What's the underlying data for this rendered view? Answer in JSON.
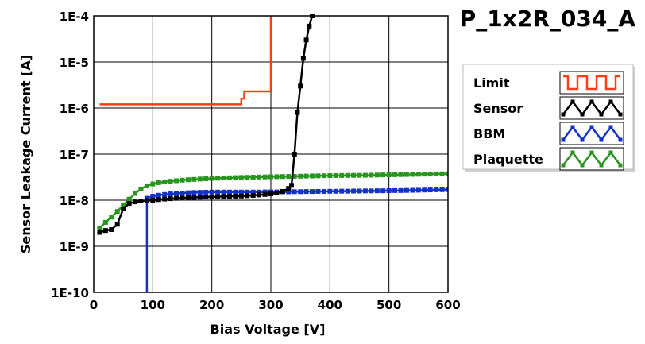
{
  "chart_data": {
    "type": "line",
    "title": "P_1x2R_034_A",
    "xlabel": "Bias Voltage [V]",
    "ylabel": "Sensor Leakage Current [A]",
    "xlim": [
      0,
      600
    ],
    "ylim": [
      1e-10,
      0.0001
    ],
    "yscale": "log",
    "grid": true,
    "legend_position": "right",
    "x_ticks": [
      {
        "value": 0,
        "label": "0"
      },
      {
        "value": 100,
        "label": "100"
      },
      {
        "value": 200,
        "label": "200"
      },
      {
        "value": 300,
        "label": "300"
      },
      {
        "value": 400,
        "label": "400"
      },
      {
        "value": 500,
        "label": "500"
      },
      {
        "value": 600,
        "label": "600"
      }
    ],
    "y_ticks": [
      {
        "value": 1e-10,
        "label": "1E-10"
      },
      {
        "value": 1e-09,
        "label": "1E-9"
      },
      {
        "value": 1e-08,
        "label": "1E-8"
      },
      {
        "value": 1e-07,
        "label": "1E-7"
      },
      {
        "value": 1e-06,
        "label": "1E-6"
      },
      {
        "value": 1e-05,
        "label": "1E-5"
      },
      {
        "value": 0.0001,
        "label": "1E-4"
      }
    ],
    "series": [
      {
        "name": "Limit",
        "color": "#ff3c14",
        "step": true,
        "markers": false,
        "x": [
          10,
          250,
          250,
          255,
          255,
          300,
          300
        ],
        "y": [
          1.2e-06,
          1.2e-06,
          1.6e-06,
          1.6e-06,
          2.3e-06,
          2.3e-06,
          0.0001
        ]
      },
      {
        "name": "Sensor",
        "color": "#000000",
        "step": false,
        "markers": true,
        "x": [
          10,
          20,
          30,
          40,
          50,
          60,
          70,
          80,
          90,
          100,
          110,
          120,
          130,
          140,
          150,
          160,
          170,
          180,
          190,
          200,
          210,
          220,
          230,
          240,
          250,
          260,
          270,
          280,
          290,
          300,
          310,
          320,
          330,
          335,
          340,
          345,
          350,
          355,
          360,
          365,
          370
        ],
        "y": [
          2e-09,
          2.2e-09,
          2.3e-09,
          3e-09,
          6.5e-09,
          8.5e-09,
          9.2e-09,
          9.6e-09,
          9.8e-09,
          1e-08,
          1.03e-08,
          1.06e-08,
          1.08e-08,
          1.1e-08,
          1.12e-08,
          1.13e-08,
          1.15e-08,
          1.16e-08,
          1.17e-08,
          1.18e-08,
          1.19e-08,
          1.2e-08,
          1.21e-08,
          1.22e-08,
          1.23e-08,
          1.25e-08,
          1.27e-08,
          1.3e-08,
          1.33e-08,
          1.37e-08,
          1.43e-08,
          1.55e-08,
          1.8e-08,
          2.1e-08,
          1e-07,
          8e-07,
          3e-06,
          1.2e-05,
          3e-05,
          6e-05,
          0.0001
        ]
      },
      {
        "name": "BBM",
        "color": "#1432c8",
        "step": false,
        "markers": true,
        "x": [
          90,
          90,
          100,
          110,
          120,
          130,
          140,
          150,
          160,
          170,
          180,
          190,
          200,
          210,
          220,
          230,
          240,
          250,
          260,
          270,
          280,
          290,
          300,
          310,
          320,
          330,
          340,
          350,
          360,
          370,
          380,
          390,
          400,
          410,
          420,
          430,
          440,
          450,
          460,
          470,
          480,
          490,
          500,
          510,
          520,
          530,
          540,
          550,
          560,
          570,
          580,
          590,
          600
        ],
        "y": [
          1e-10,
          1.1e-08,
          1.22e-08,
          1.28e-08,
          1.33e-08,
          1.37e-08,
          1.4e-08,
          1.43e-08,
          1.45e-08,
          1.47e-08,
          1.48e-08,
          1.49e-08,
          1.5e-08,
          1.5e-08,
          1.5e-08,
          1.5e-08,
          1.5e-08,
          1.5e-08,
          1.5e-08,
          1.5e-08,
          1.5e-08,
          1.51e-08,
          1.51e-08,
          1.51e-08,
          1.52e-08,
          1.52e-08,
          1.53e-08,
          1.53e-08,
          1.54e-08,
          1.54e-08,
          1.55e-08,
          1.55e-08,
          1.56e-08,
          1.56e-08,
          1.57e-08,
          1.57e-08,
          1.58e-08,
          1.58e-08,
          1.59e-08,
          1.59e-08,
          1.6e-08,
          1.6e-08,
          1.61e-08,
          1.62e-08,
          1.62e-08,
          1.63e-08,
          1.64e-08,
          1.65e-08,
          1.66e-08,
          1.67e-08,
          1.68e-08,
          1.69e-08,
          1.7e-08
        ]
      },
      {
        "name": "Plaquette",
        "color": "#28961e",
        "step": false,
        "markers": true,
        "x": [
          10,
          20,
          30,
          40,
          50,
          60,
          70,
          80,
          90,
          100,
          110,
          120,
          130,
          140,
          150,
          160,
          170,
          180,
          190,
          200,
          210,
          220,
          230,
          240,
          250,
          260,
          270,
          280,
          290,
          300,
          310,
          320,
          330,
          340,
          350,
          360,
          370,
          380,
          390,
          400,
          410,
          420,
          430,
          440,
          450,
          460,
          470,
          480,
          490,
          500,
          510,
          520,
          530,
          540,
          550,
          560,
          570,
          580,
          590,
          600
        ],
        "y": [
          2.5e-09,
          3.3e-09,
          4.3e-09,
          5.7e-09,
          7.8e-09,
          1.05e-08,
          1.4e-08,
          1.75e-08,
          2.05e-08,
          2.25e-08,
          2.4e-08,
          2.5e-08,
          2.58e-08,
          2.65e-08,
          2.72e-08,
          2.78e-08,
          2.83e-08,
          2.88e-08,
          2.92e-08,
          2.96e-08,
          3e-08,
          3.03e-08,
          3.06e-08,
          3.09e-08,
          3.12e-08,
          3.14e-08,
          3.16e-08,
          3.18e-08,
          3.2e-08,
          3.22e-08,
          3.24e-08,
          3.26e-08,
          3.28e-08,
          3.3e-08,
          3.32e-08,
          3.34e-08,
          3.36e-08,
          3.38e-08,
          3.4e-08,
          3.42e-08,
          3.43e-08,
          3.44e-08,
          3.45e-08,
          3.46e-08,
          3.47e-08,
          3.48e-08,
          3.5e-08,
          3.52e-08,
          3.54e-08,
          3.56e-08,
          3.58e-08,
          3.6e-08,
          3.62e-08,
          3.64e-08,
          3.66e-08,
          3.68e-08,
          3.7e-08,
          3.72e-08,
          3.74e-08,
          3.76e-08
        ]
      }
    ]
  }
}
